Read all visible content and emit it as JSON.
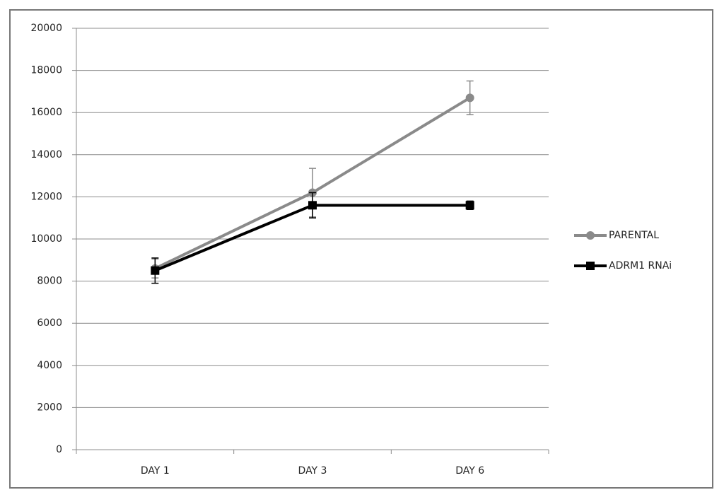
{
  "chart_data": {
    "type": "line",
    "categories": [
      "DAY 1",
      "DAY 3",
      "DAY 6"
    ],
    "series": [
      {
        "name": "PARENTAL",
        "color": "#8a8a8a",
        "marker": "circle",
        "values": [
          8600,
          12200,
          16700
        ],
        "errors": [
          450,
          1150,
          800
        ]
      },
      {
        "name": "ADRM1 RNAi",
        "color": "#000000",
        "marker": "square",
        "values": [
          8500,
          11600,
          11600
        ],
        "errors": [
          600,
          600,
          200
        ]
      }
    ],
    "ylim": [
      0,
      20000
    ],
    "yticks": [
      0,
      2000,
      4000,
      6000,
      8000,
      10000,
      12000,
      14000,
      16000,
      18000,
      20000
    ],
    "grid": true,
    "legend": "right"
  }
}
